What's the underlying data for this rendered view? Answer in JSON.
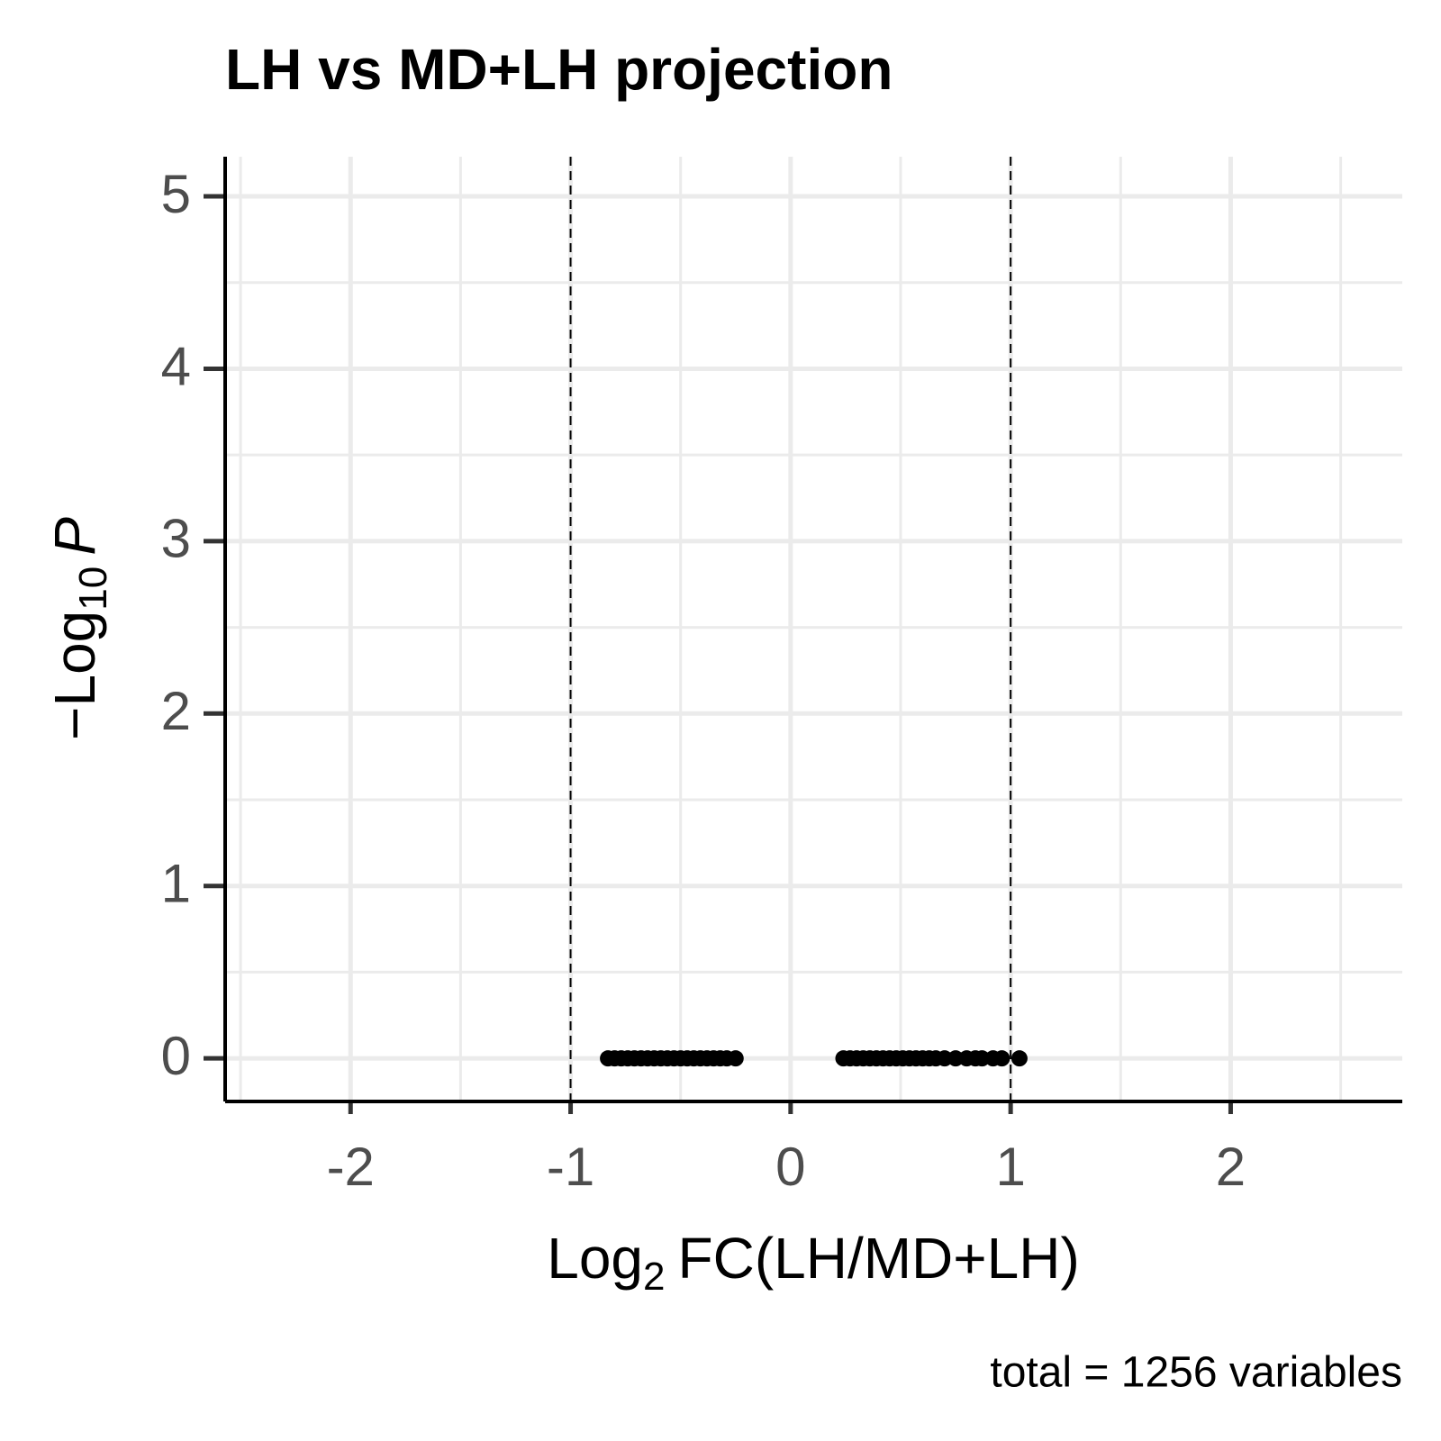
{
  "chart_data": {
    "type": "scatter",
    "title": "LH vs MD+LH projection",
    "xlabel": [
      "Log",
      "2",
      "FC(LH/MD+LH)"
    ],
    "ylabel": [
      "−Log",
      "10",
      "P"
    ],
    "caption": "total = 1256 variables",
    "xlim": [
      -2.57,
      2.78
    ],
    "ylim": [
      -0.25,
      5.23
    ],
    "xticks": [
      -2,
      -1,
      0,
      1,
      2
    ],
    "yticks": [
      0,
      1,
      2,
      3,
      4,
      5
    ],
    "grid": true,
    "cutoff_lines": [
      -1,
      1
    ],
    "series": [
      {
        "color": "#000000",
        "x": [
          -0.83,
          -0.8,
          -0.77,
          -0.74,
          -0.71,
          -0.68,
          -0.65,
          -0.62,
          -0.59,
          -0.56,
          -0.53,
          -0.5,
          -0.47,
          -0.44,
          -0.41,
          -0.38,
          -0.35,
          -0.32,
          -0.29,
          -0.25,
          0.24,
          0.27,
          0.3,
          0.33,
          0.36,
          0.39,
          0.42,
          0.45,
          0.48,
          0.51,
          0.54,
          0.57,
          0.6,
          0.63,
          0.66,
          0.7,
          0.75,
          0.8,
          0.84,
          0.87,
          0.92,
          0.96,
          1.04
        ],
        "values": [
          0,
          0,
          0,
          0,
          0,
          0,
          0,
          0,
          0,
          0,
          0,
          0,
          0,
          0,
          0,
          0,
          0,
          0,
          0,
          0,
          0,
          0,
          0,
          0,
          0,
          0,
          0,
          0,
          0,
          0,
          0,
          0,
          0,
          0,
          0,
          0,
          0,
          0,
          0,
          0,
          0,
          0,
          0
        ]
      }
    ]
  }
}
